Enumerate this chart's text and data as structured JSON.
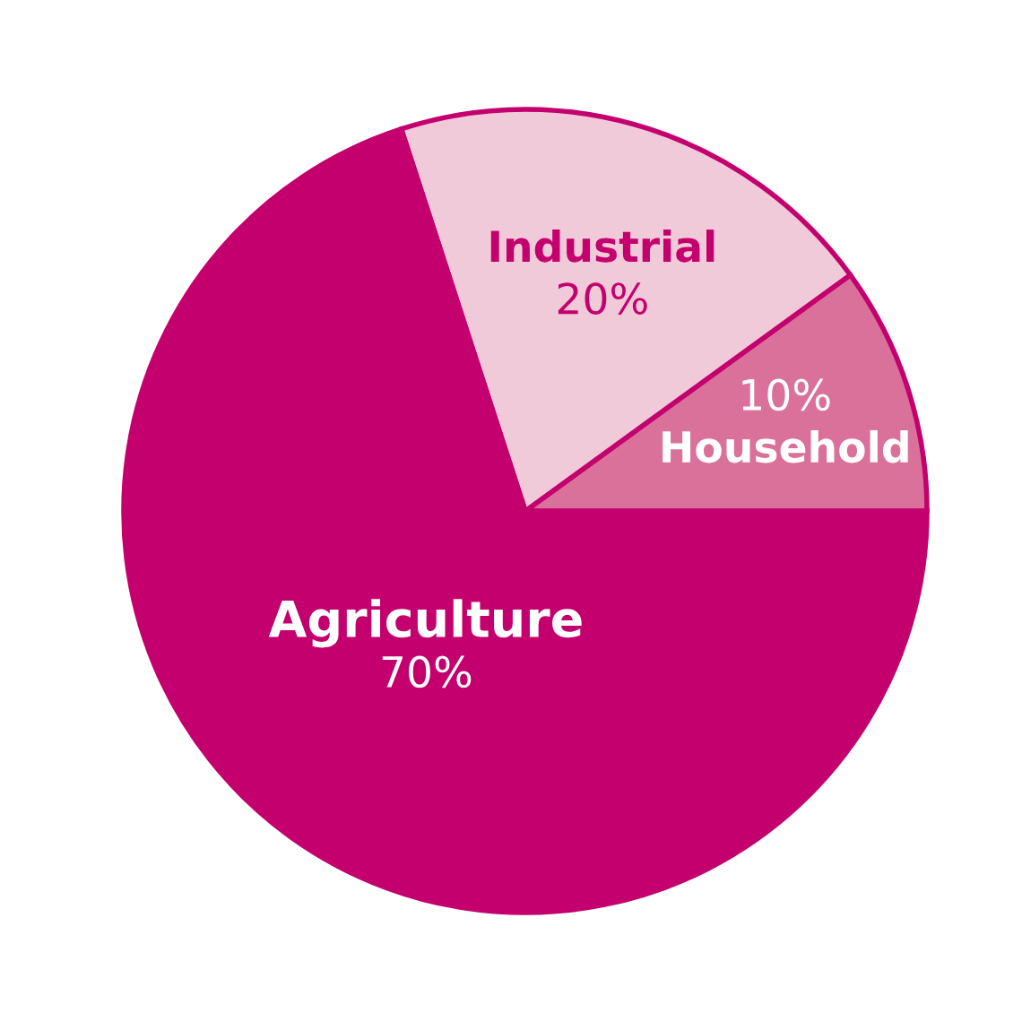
{
  "chart_data": {
    "type": "pie",
    "categories": [
      "Household",
      "Industrial",
      "Agriculture"
    ],
    "values": [
      10,
      20,
      70
    ],
    "colors": [
      "#d9719b",
      "#f0cad9",
      "#c4006e"
    ],
    "value_labels": [
      "10%",
      "20%",
      "70%"
    ]
  }
}
